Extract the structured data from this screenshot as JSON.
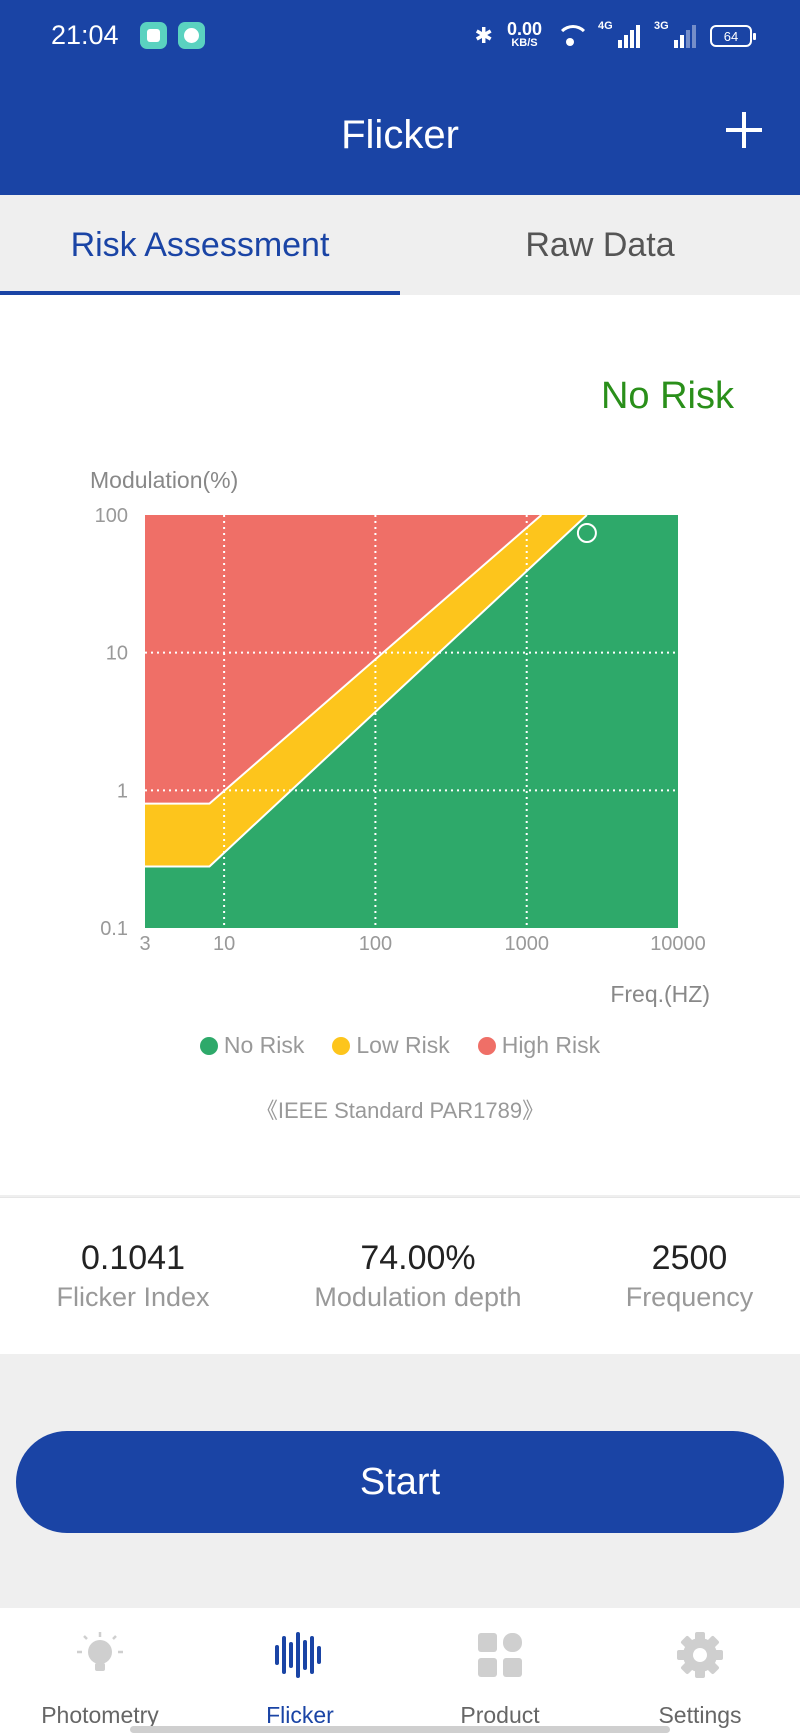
{
  "status_bar": {
    "time": "21:04",
    "net_speed_value": "0.00",
    "net_speed_unit": "KB/S",
    "signal_1_label": "4G",
    "signal_2_label": "3G",
    "battery": "64"
  },
  "header": {
    "title": "Flicker",
    "add_icon": "plus-icon"
  },
  "tabs": [
    {
      "label": "Risk Assessment",
      "active": true
    },
    {
      "label": "Raw Data",
      "active": false
    }
  ],
  "risk_status": "No Risk",
  "colors": {
    "brand": "#1a44a5",
    "no_risk": "#2ea96a",
    "low_risk": "#fdc51c",
    "high_risk": "#ef6f67",
    "status_green": "#2a8f1a"
  },
  "chart_data": {
    "type": "area",
    "ylabel": "Modulation(%)",
    "xlabel": "Freq.(HZ)",
    "x_scale": "log",
    "y_scale": "log",
    "xlim": [
      3,
      10000
    ],
    "ylim": [
      0.1,
      100
    ],
    "x_ticks": [
      "3",
      "10",
      "100",
      "1000",
      "10000"
    ],
    "y_ticks": [
      "100",
      "10",
      "1",
      "0.1"
    ],
    "grid": true,
    "legend_position": "bottom",
    "regions": [
      {
        "name": "High Risk",
        "boundary": [
          [
            3,
            0.8
          ],
          [
            8,
            0.8
          ],
          [
            1250,
            100
          ]
        ]
      },
      {
        "name": "Low Risk",
        "boundary": [
          [
            3,
            0.28
          ],
          [
            8,
            0.28
          ],
          [
            2500,
            100
          ]
        ]
      },
      {
        "name": "No Risk",
        "boundary": "below Low Risk"
      }
    ],
    "measurement": {
      "x": 2500,
      "y": 74
    }
  },
  "legend": [
    {
      "label": "No Risk",
      "color": "#2ea96a"
    },
    {
      "label": "Low Risk",
      "color": "#fdc51c"
    },
    {
      "label": "High Risk",
      "color": "#ef6f67"
    }
  ],
  "standard_note": "《IEEE Standard PAR1789》",
  "metrics": {
    "flicker_index": {
      "value": "0.1041",
      "label": "Flicker Index"
    },
    "modulation_depth": {
      "value": "74.00%",
      "label": "Modulation depth"
    },
    "frequency": {
      "value": "2500",
      "label": "Frequency"
    }
  },
  "start_label": "Start",
  "bottom_nav": [
    {
      "label": "Photometry",
      "icon": "bulb-icon",
      "active": false
    },
    {
      "label": "Flicker",
      "icon": "waveform-icon",
      "active": true
    },
    {
      "label": "Product",
      "icon": "grid-icon",
      "active": false
    },
    {
      "label": "Settings",
      "icon": "gear-icon",
      "active": false
    }
  ]
}
